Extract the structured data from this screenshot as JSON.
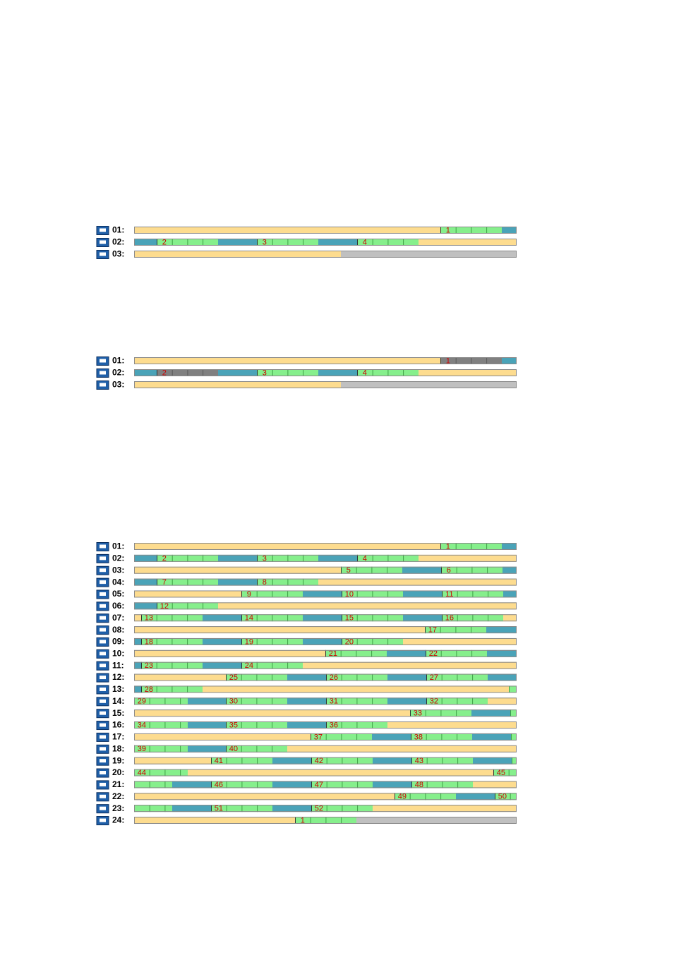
{
  "panels": [
    {
      "rows": [
        {
          "label": "01:",
          "files": [
            "1"
          ]
        },
        {
          "label": "02:",
          "files": [
            "2",
            "3",
            "4"
          ]
        },
        {
          "label": "03:",
          "files": []
        }
      ]
    },
    {
      "rows": [
        {
          "label": "01:",
          "files": [
            "1"
          ]
        },
        {
          "label": "02:",
          "files": [
            "2",
            "3",
            "4"
          ]
        },
        {
          "label": "03:",
          "files": []
        }
      ]
    },
    {
      "rows": [
        {
          "label": "01:",
          "files": [
            "1"
          ]
        },
        {
          "label": "02:",
          "files": [
            "2",
            "3",
            "4"
          ]
        },
        {
          "label": "03:",
          "files": [
            "5",
            "6"
          ]
        },
        {
          "label": "04:",
          "files": [
            "7",
            "8"
          ]
        },
        {
          "label": "05:",
          "files": [
            "9",
            "10",
            "11"
          ]
        },
        {
          "label": "06:",
          "files": [
            "12"
          ]
        },
        {
          "label": "07:",
          "files": [
            "13",
            "14",
            "15",
            "16"
          ]
        },
        {
          "label": "08:",
          "files": [
            "17"
          ]
        },
        {
          "label": "09:",
          "files": [
            "18",
            "19",
            "20"
          ]
        },
        {
          "label": "10:",
          "files": [
            "21",
            "22"
          ]
        },
        {
          "label": "11:",
          "files": [
            "23",
            "24"
          ]
        },
        {
          "label": "12:",
          "files": [
            "25",
            "26",
            "27"
          ]
        },
        {
          "label": "13:",
          "files": [
            "28"
          ]
        },
        {
          "label": "14:",
          "files": [
            "29",
            "30",
            "31",
            "32"
          ]
        },
        {
          "label": "15:",
          "files": [
            "33"
          ]
        },
        {
          "label": "16:",
          "files": [
            "34",
            "35",
            "36"
          ]
        },
        {
          "label": "17:",
          "files": [
            "37",
            "38"
          ]
        },
        {
          "label": "18:",
          "files": [
            "39",
            "40"
          ]
        },
        {
          "label": "19:",
          "files": [
            "41",
            "42",
            "43"
          ]
        },
        {
          "label": "20:",
          "files": [
            "44",
            "45"
          ]
        },
        {
          "label": "21:",
          "files": [
            "46",
            "47",
            "48"
          ]
        },
        {
          "label": "22:",
          "files": [
            "49",
            "50"
          ]
        },
        {
          "label": "23:",
          "files": [
            "51",
            "52"
          ]
        },
        {
          "label": "24:",
          "files": [
            "1"
          ]
        }
      ]
    }
  ]
}
